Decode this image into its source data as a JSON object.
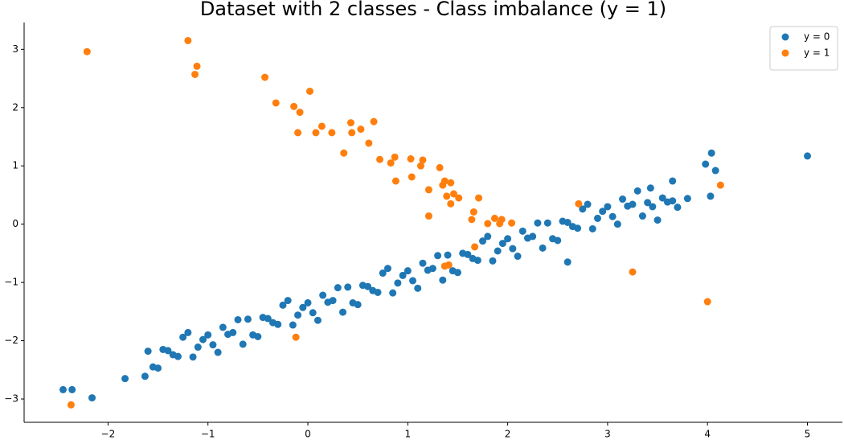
{
  "chart_data": {
    "type": "scatter",
    "title": "Dataset with 2 classes - Class imbalance (y = 1)",
    "xlim": [
      -2.84,
      5.35
    ],
    "ylim": [
      -3.4,
      3.46
    ],
    "xticks": [
      {
        "value": -2,
        "label": "−2"
      },
      {
        "value": -1,
        "label": "−1"
      },
      0,
      1,
      2,
      3,
      4,
      5
    ],
    "yticks": [
      {
        "value": -3,
        "label": "−3"
      },
      {
        "value": -2,
        "label": "−2"
      },
      {
        "value": -1,
        "label": "−1"
      },
      0,
      1,
      2,
      3
    ],
    "legend": "upper right",
    "series": [
      {
        "name": "y = 0",
        "color": "#1f77b4",
        "x": [
          -1.6,
          -1.5,
          -1.4,
          -1.3,
          -1.2,
          -1.1,
          -1.0,
          -0.9,
          -0.8,
          -0.7,
          -0.6,
          -0.5,
          -0.4,
          -0.3,
          -0.2,
          -0.1,
          0,
          0.1,
          0.2,
          0.3,
          0.4,
          0.5,
          0.6,
          0.7,
          0.8,
          0.9,
          1.0,
          1.1,
          1.2,
          1.3,
          1.4,
          1.5,
          1.6,
          1.7,
          1.8,
          1.9,
          2.0,
          2.1,
          2.2,
          2.3,
          2.4,
          2.5,
          2.6,
          2.7,
          2.8,
          2.9,
          3.0,
          3.1,
          3.2,
          3.3,
          3.4,
          3.5,
          3.6,
          3.7,
          3.8,
          -1.55,
          -1.45,
          -1.35,
          -1.25,
          -1.15,
          -1.05,
          -0.95,
          -0.85,
          -0.75,
          -0.65,
          -0.55,
          -0.45,
          -0.35,
          -0.25,
          -0.15,
          -0.05,
          0.05,
          0.15,
          0.25,
          0.35,
          0.45,
          0.55,
          0.65,
          0.75,
          0.85,
          0.95,
          1.05,
          1.15,
          1.25,
          1.35,
          1.45,
          1.55,
          1.65,
          1.75,
          1.85,
          1.95,
          2.05,
          2.15,
          2.25,
          2.35,
          2.45,
          2.55,
          2.65,
          2.75,
          2.85,
          2.95,
          3.05,
          3.15,
          3.25,
          3.35,
          3.45,
          3.55,
          3.65,
          -2.45,
          -2.36,
          -2.16,
          -1.83,
          -1.63,
          4.04,
          3.98,
          4.08,
          4.03,
          5.0,
          2.6,
          3.43,
          3.65
        ],
        "y": [
          -2.18,
          -2.47,
          -2.17,
          -2.27,
          -1.86,
          -2.11,
          -1.9,
          -2.2,
          -1.89,
          -1.64,
          -1.63,
          -1.93,
          -1.62,
          -1.72,
          -1.31,
          -1.56,
          -1.35,
          -1.65,
          -1.34,
          -1.09,
          -1.08,
          -1.38,
          -1.07,
          -1.17,
          -0.76,
          -1.01,
          -0.8,
          -1.1,
          -0.79,
          -0.54,
          -0.53,
          -0.83,
          -0.52,
          -0.62,
          -0.21,
          -0.46,
          -0.25,
          -0.55,
          -0.24,
          0.02,
          0.02,
          -0.28,
          0.03,
          -0.07,
          0.34,
          0.1,
          0.3,
          0.0,
          0.31,
          0.57,
          0.37,
          0.07,
          0.38,
          0.29,
          0.44,
          -2.45,
          -2.15,
          -2.24,
          -1.94,
          -2.28,
          -1.98,
          -2.07,
          -1.77,
          -1.86,
          -2.06,
          -1.9,
          -1.6,
          -1.69,
          -1.39,
          -1.73,
          -1.43,
          -1.52,
          -1.22,
          -1.31,
          -1.51,
          -1.35,
          -1.05,
          -1.14,
          -0.84,
          -1.18,
          -0.88,
          -0.97,
          -0.67,
          -0.76,
          -0.96,
          -0.8,
          -0.5,
          -0.59,
          -0.29,
          -0.63,
          -0.33,
          -0.42,
          -0.12,
          -0.21,
          -0.41,
          -0.25,
          0.05,
          -0.04,
          0.26,
          -0.08,
          0.22,
          0.13,
          0.43,
          0.34,
          0.14,
          0.3,
          0.45,
          0.4,
          -2.84,
          -2.84,
          -2.98,
          -2.65,
          -2.61,
          1.22,
          1.03,
          0.92,
          0.48,
          1.17,
          -0.65,
          0.62,
          0.74
        ]
      },
      {
        "name": "y = 1",
        "color": "#ff7f0e",
        "x": [
          -2.21,
          -1.2,
          -1.11,
          -1.13,
          -0.43,
          0.02,
          -0.32,
          -0.14,
          -0.08,
          -0.1,
          0.08,
          0.14,
          0.24,
          0.43,
          0.44,
          0.53,
          0.66,
          0.61,
          0.36,
          0.72,
          0.83,
          0.87,
          0.88,
          1.03,
          1.04,
          1.13,
          1.15,
          1.32,
          1.21,
          1.35,
          1.37,
          1.43,
          1.39,
          1.46,
          1.51,
          1.43,
          1.21,
          1.66,
          1.71,
          1.64,
          1.8,
          1.87,
          1.92,
          1.94,
          2.04,
          2.71,
          1.67,
          1.37,
          1.41,
          3.25,
          4.0,
          4.13,
          -0.12,
          -2.37
        ],
        "y": [
          2.96,
          3.15,
          2.71,
          2.57,
          2.52,
          2.28,
          2.08,
          2.02,
          1.92,
          1.57,
          1.57,
          1.68,
          1.57,
          1.74,
          1.57,
          1.63,
          1.76,
          1.39,
          1.22,
          1.11,
          1.05,
          1.15,
          0.74,
          1.12,
          0.81,
          1.0,
          1.1,
          0.97,
          0.59,
          0.67,
          0.74,
          0.71,
          0.48,
          0.52,
          0.45,
          0.35,
          0.14,
          0.21,
          0.45,
          0.08,
          0.01,
          0.1,
          0.01,
          0.08,
          0.02,
          0.35,
          -0.39,
          -0.72,
          -0.7,
          -0.82,
          -1.33,
          0.67,
          -1.94,
          -3.1
        ]
      }
    ]
  }
}
